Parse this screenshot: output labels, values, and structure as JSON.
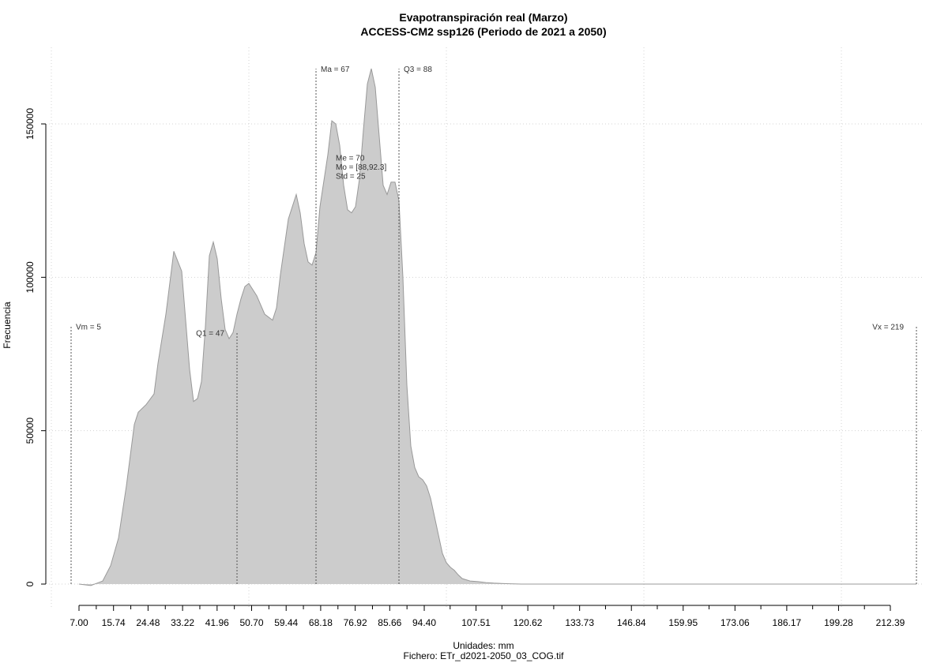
{
  "chart_data": {
    "type": "area",
    "title": "Evapotranspiración real (Marzo)",
    "subtitle": "ACCESS-CM2 ssp126 (Periodo de 2021 a 2050)",
    "xlabel": "Unidades: mm",
    "ylabel": "Frecuencia",
    "footer": "Fichero: ETr_d2021-2050_03_COG.tif",
    "xlim": [
      0,
      225
    ],
    "ylim": [
      0,
      170000
    ],
    "grid": true,
    "x_ticks": [
      "7.00",
      "15.74",
      "24.48",
      "33.22",
      "41.96",
      "50.70",
      "59.44",
      "68.18",
      "76.92",
      "85.66",
      "94.40",
      "107.51",
      "120.62",
      "133.73",
      "146.84",
      "159.95",
      "173.06",
      "186.17",
      "199.28",
      "212.39"
    ],
    "x_tick_values": [
      7.0,
      15.74,
      24.48,
      33.22,
      41.96,
      50.7,
      59.44,
      68.18,
      76.92,
      85.66,
      94.4,
      107.51,
      120.62,
      133.73,
      146.84,
      159.95,
      173.06,
      186.17,
      199.28,
      212.39
    ],
    "y_ticks": [
      "0",
      "50000",
      "100000",
      "150000"
    ],
    "y_tick_values": [
      0,
      50000,
      100000,
      150000
    ],
    "x": [
      7,
      10,
      13,
      15,
      17,
      19,
      21,
      22,
      24,
      26,
      27,
      29,
      31,
      33,
      35,
      36,
      37,
      38,
      39,
      40,
      41,
      42,
      43,
      44,
      45,
      46,
      47,
      48,
      49,
      50,
      52,
      54,
      56,
      57,
      58,
      60,
      62,
      63,
      64,
      65,
      66,
      67,
      68,
      70,
      71,
      72,
      73,
      74,
      75,
      76,
      77,
      78,
      79,
      80,
      81,
      82,
      83,
      84,
      85,
      86,
      87,
      88,
      89,
      90,
      91,
      92,
      93,
      94,
      95,
      96,
      97,
      98,
      99,
      100,
      101,
      102,
      103,
      104,
      106,
      108,
      110,
      112,
      114,
      116,
      119,
      122,
      125,
      128,
      131,
      135,
      140,
      150,
      160,
      180,
      200,
      219
    ],
    "values": [
      0,
      -500,
      1000,
      6000,
      15000,
      32000,
      52000,
      56000,
      58500,
      62000,
      72000,
      88000,
      108500,
      102000,
      70000,
      59500,
      60500,
      66000,
      84000,
      107000,
      111500,
      106000,
      93000,
      83000,
      80000,
      82000,
      88000,
      93000,
      97000,
      98000,
      94000,
      88000,
      86000,
      90000,
      101000,
      119000,
      127000,
      121000,
      111000,
      105000,
      104000,
      108000,
      123000,
      140000,
      151000,
      150000,
      143000,
      130000,
      122000,
      121000,
      123000,
      132000,
      148000,
      163000,
      168000,
      162000,
      146000,
      130000,
      127000,
      131000,
      131000,
      125000,
      100000,
      65000,
      45000,
      38000,
      35000,
      34000,
      32000,
      28000,
      22000,
      16000,
      10000,
      7000,
      5500,
      4500,
      3000,
      1800,
      1000,
      800,
      500,
      300,
      200,
      100,
      0,
      0,
      0,
      0,
      0,
      0,
      0,
      0,
      0,
      0,
      0,
      0
    ],
    "fill_color": "#cccccc",
    "line_color": "#999999",
    "markers": [
      {
        "label": "Vm = 5",
        "x": 5,
        "top": 84000,
        "label_side": "right"
      },
      {
        "label": "Q1 = 47",
        "x": 47,
        "top": 82000,
        "label_side": "left"
      },
      {
        "label": "Ma = 67",
        "x": 67,
        "top": 168000,
        "label_side": "right"
      },
      {
        "label": "Q3 = 88",
        "x": 88,
        "top": 168000,
        "label_side": "right"
      },
      {
        "label": "Vx = 219",
        "x": 219,
        "top": 84000,
        "label_side": "left"
      }
    ],
    "stats": [
      "Me = 70",
      "Mo = [88,92.3]",
      "Std = 25"
    ],
    "stats_anchor": {
      "x": 72,
      "y": 138000
    }
  }
}
